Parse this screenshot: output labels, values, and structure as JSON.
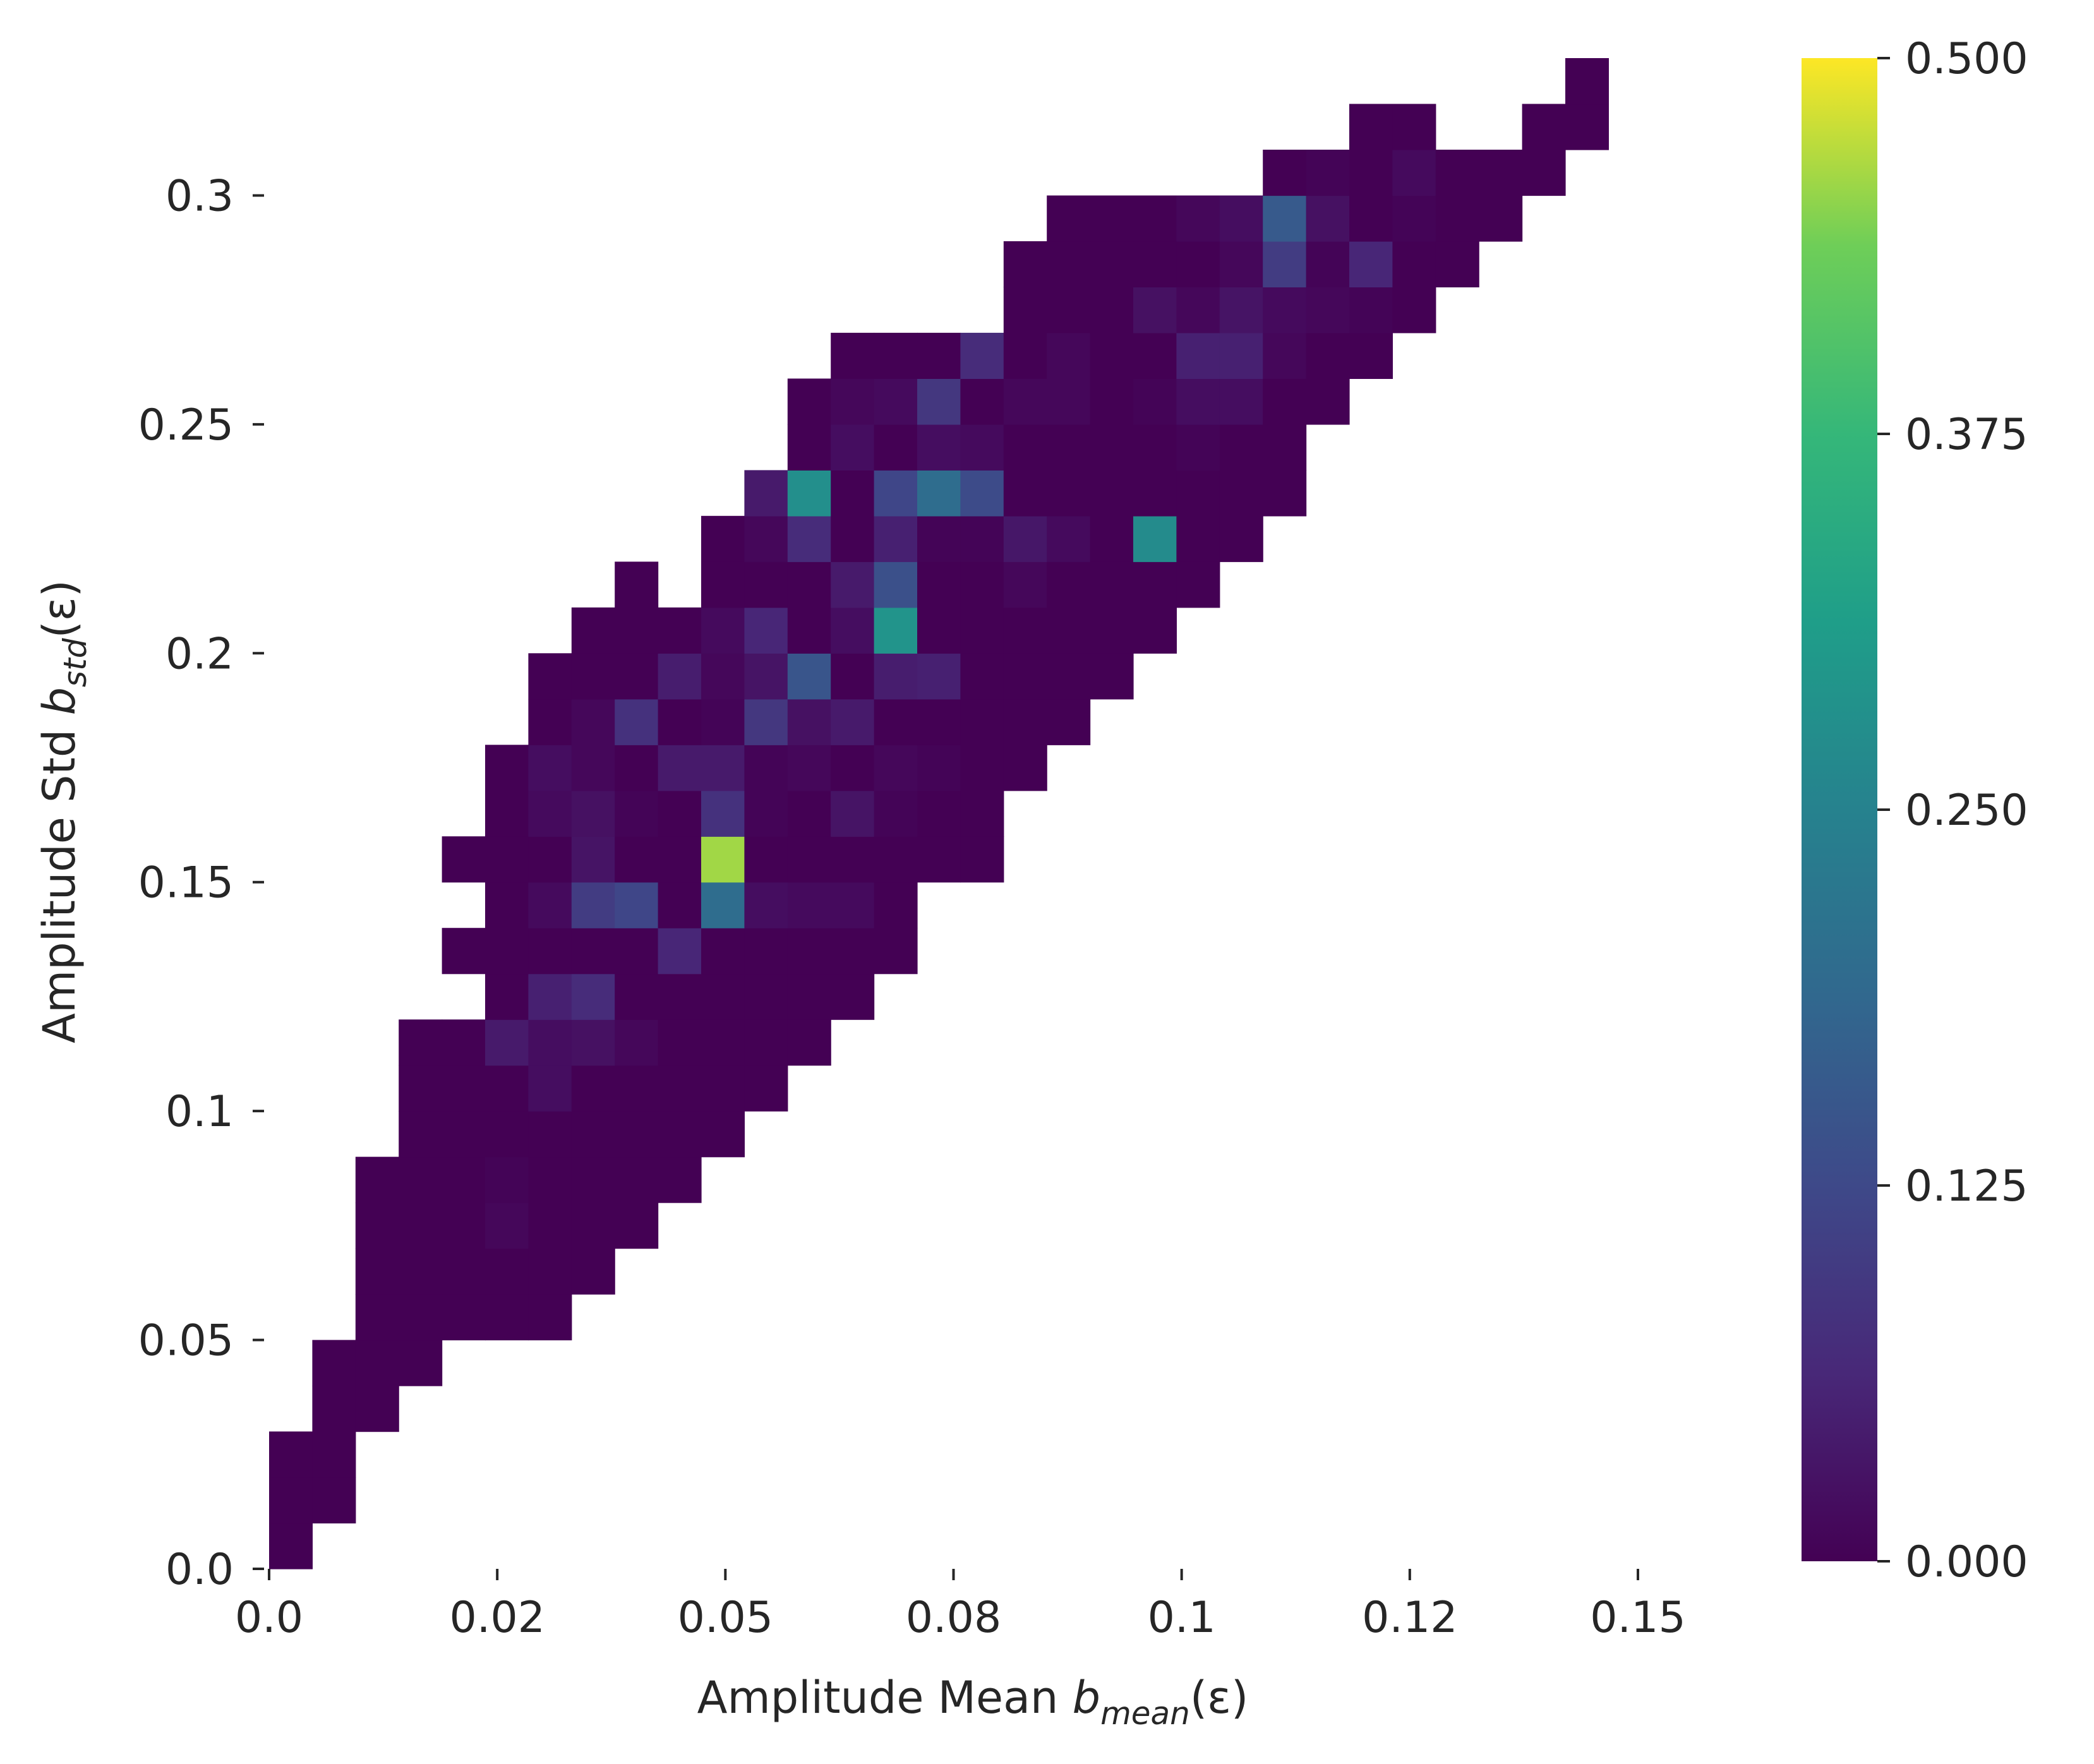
{
  "chart_data": {
    "type": "heatmap",
    "title": "",
    "xlabel": {
      "prefix": "Amplitude Mean ",
      "symbol": "b",
      "subscript": "mean",
      "suffix": "(ε)"
    },
    "ylabel": {
      "prefix": "Amplitude Std ",
      "symbol": "b",
      "subscript": "std",
      "suffix": "(ε)"
    },
    "x_ticks": [
      {
        "value": 0.0,
        "label": "0.0"
      },
      {
        "value": 0.025,
        "label": "0.02"
      },
      {
        "value": 0.05,
        "label": "0.05"
      },
      {
        "value": 0.075,
        "label": "0.08"
      },
      {
        "value": 0.1,
        "label": "0.1"
      },
      {
        "value": 0.125,
        "label": "0.12"
      },
      {
        "value": 0.15,
        "label": "0.15"
      }
    ],
    "y_ticks": [
      {
        "value": 0.0,
        "label": "0.0"
      },
      {
        "value": 0.05,
        "label": "0.05"
      },
      {
        "value": 0.1,
        "label": "0.1"
      },
      {
        "value": 0.15,
        "label": "0.15"
      },
      {
        "value": 0.2,
        "label": "0.2"
      },
      {
        "value": 0.25,
        "label": "0.25"
      },
      {
        "value": 0.3,
        "label": "0.3"
      }
    ],
    "xlim": [
      0.0,
      0.15
    ],
    "ylim": [
      0.0,
      0.33
    ],
    "n_x_bins": 31,
    "n_y_bins": 33,
    "colorbar": {
      "range": [
        0.0,
        0.5
      ],
      "colormap": "viridis",
      "ticks": [
        {
          "value": 0.0,
          "label": "0.000"
        },
        {
          "value": 0.125,
          "label": "0.125"
        },
        {
          "value": 0.25,
          "label": "0.250"
        },
        {
          "value": 0.375,
          "label": "0.375"
        },
        {
          "value": 0.5,
          "label": "0.500"
        }
      ]
    },
    "grid": false,
    "legend": "none",
    "cells": [
      [
        0,
        0,
        0.0
      ],
      [
        0,
        1,
        0.0
      ],
      [
        1,
        1,
        0.0
      ],
      [
        0,
        2,
        0.0
      ],
      [
        1,
        2,
        0.0
      ],
      [
        1,
        3,
        0.0
      ],
      [
        2,
        3,
        0.0
      ],
      [
        1,
        4,
        0.0
      ],
      [
        2,
        4,
        0.0
      ],
      [
        3,
        4,
        0.0
      ],
      [
        2,
        5,
        0.0
      ],
      [
        3,
        5,
        0.0
      ],
      [
        4,
        5,
        0.0
      ],
      [
        5,
        5,
        0.0
      ],
      [
        6,
        5,
        0.0
      ],
      [
        2,
        6,
        0.0
      ],
      [
        3,
        6,
        0.0
      ],
      [
        4,
        6,
        0.0
      ],
      [
        5,
        6,
        0.0
      ],
      [
        6,
        6,
        0.0
      ],
      [
        7,
        6,
        0.0
      ],
      [
        2,
        7,
        0.0
      ],
      [
        3,
        7,
        0.0
      ],
      [
        4,
        7,
        0.0
      ],
      [
        5,
        7,
        0.01
      ],
      [
        6,
        7,
        0.0
      ],
      [
        7,
        7,
        0.0
      ],
      [
        8,
        7,
        0.0
      ],
      [
        2,
        8,
        0.0
      ],
      [
        3,
        8,
        0.0
      ],
      [
        4,
        8,
        0.0
      ],
      [
        5,
        8,
        0.005
      ],
      [
        6,
        8,
        0.0
      ],
      [
        7,
        8,
        0.0
      ],
      [
        8,
        8,
        0.0
      ],
      [
        9,
        8,
        0.0
      ],
      [
        3,
        9,
        0.0
      ],
      [
        4,
        9,
        0.0
      ],
      [
        5,
        9,
        0.0
      ],
      [
        6,
        9,
        0.0
      ],
      [
        7,
        9,
        0.0
      ],
      [
        8,
        9,
        0.0
      ],
      [
        9,
        9,
        0.0
      ],
      [
        10,
        9,
        0.0
      ],
      [
        3,
        10,
        0.0
      ],
      [
        4,
        10,
        0.0
      ],
      [
        5,
        10,
        0.0
      ],
      [
        6,
        10,
        0.02
      ],
      [
        7,
        10,
        0.0
      ],
      [
        8,
        10,
        0.0
      ],
      [
        9,
        10,
        0.0
      ],
      [
        10,
        10,
        0.0
      ],
      [
        11,
        10,
        0.0
      ],
      [
        3,
        11,
        0.0
      ],
      [
        4,
        11,
        0.0
      ],
      [
        5,
        11,
        0.04
      ],
      [
        6,
        11,
        0.02
      ],
      [
        7,
        11,
        0.025
      ],
      [
        8,
        11,
        0.01
      ],
      [
        9,
        11,
        0.0
      ],
      [
        10,
        11,
        0.0
      ],
      [
        11,
        11,
        0.0
      ],
      [
        12,
        11,
        0.0
      ],
      [
        5,
        12,
        0.0
      ],
      [
        6,
        12,
        0.05
      ],
      [
        7,
        12,
        0.07
      ],
      [
        8,
        12,
        0.0
      ],
      [
        9,
        12,
        0.0
      ],
      [
        10,
        12,
        0.0
      ],
      [
        11,
        12,
        0.0
      ],
      [
        12,
        12,
        0.0
      ],
      [
        13,
        12,
        0.0
      ],
      [
        4,
        13,
        0.0
      ],
      [
        5,
        13,
        0.0
      ],
      [
        6,
        13,
        0.0
      ],
      [
        7,
        13,
        0.0
      ],
      [
        8,
        13,
        0.0
      ],
      [
        9,
        13,
        0.06
      ],
      [
        10,
        13,
        0.0
      ],
      [
        11,
        13,
        0.0
      ],
      [
        12,
        13,
        0.0
      ],
      [
        13,
        13,
        0.0
      ],
      [
        14,
        13,
        0.0
      ],
      [
        5,
        14,
        0.0
      ],
      [
        6,
        14,
        0.015
      ],
      [
        7,
        14,
        0.1
      ],
      [
        8,
        14,
        0.12
      ],
      [
        9,
        14,
        0.0
      ],
      [
        10,
        14,
        0.2
      ],
      [
        11,
        14,
        0.02
      ],
      [
        12,
        14,
        0.015
      ],
      [
        13,
        14,
        0.015
      ],
      [
        14,
        14,
        0.0
      ],
      [
        4,
        15,
        0.0
      ],
      [
        5,
        15,
        0.0
      ],
      [
        6,
        15,
        0.0
      ],
      [
        7,
        15,
        0.03
      ],
      [
        8,
        15,
        0.0
      ],
      [
        9,
        15,
        0.0
      ],
      [
        10,
        15,
        0.46
      ],
      [
        11,
        15,
        0.0
      ],
      [
        12,
        15,
        0.0
      ],
      [
        13,
        15,
        0.0
      ],
      [
        14,
        15,
        0.0
      ],
      [
        15,
        15,
        0.0
      ],
      [
        16,
        15,
        0.0
      ],
      [
        5,
        16,
        0.0
      ],
      [
        6,
        16,
        0.015
      ],
      [
        7,
        16,
        0.025
      ],
      [
        8,
        16,
        0.005
      ],
      [
        9,
        16,
        0.0
      ],
      [
        10,
        16,
        0.08
      ],
      [
        11,
        16,
        0.005
      ],
      [
        12,
        16,
        0.0
      ],
      [
        13,
        16,
        0.03
      ],
      [
        14,
        16,
        0.005
      ],
      [
        15,
        16,
        0.0
      ],
      [
        16,
        16,
        0.0
      ],
      [
        5,
        17,
        0.0
      ],
      [
        6,
        17,
        0.02
      ],
      [
        7,
        17,
        0.01
      ],
      [
        8,
        17,
        0.0
      ],
      [
        9,
        17,
        0.04
      ],
      [
        10,
        17,
        0.04
      ],
      [
        11,
        17,
        0.005
      ],
      [
        12,
        17,
        0.01
      ],
      [
        13,
        17,
        0.0
      ],
      [
        14,
        17,
        0.01
      ],
      [
        15,
        17,
        0.005
      ],
      [
        16,
        17,
        0.0
      ],
      [
        17,
        17,
        0.0
      ],
      [
        6,
        18,
        0.0
      ],
      [
        7,
        18,
        0.01
      ],
      [
        8,
        18,
        0.08
      ],
      [
        9,
        18,
        0.0
      ],
      [
        10,
        18,
        0.005
      ],
      [
        11,
        18,
        0.09
      ],
      [
        12,
        18,
        0.025
      ],
      [
        13,
        18,
        0.04
      ],
      [
        14,
        18,
        0.0
      ],
      [
        15,
        18,
        0.0
      ],
      [
        16,
        18,
        0.0
      ],
      [
        17,
        18,
        0.0
      ],
      [
        18,
        18,
        0.0
      ],
      [
        6,
        19,
        0.0
      ],
      [
        7,
        19,
        0.0
      ],
      [
        8,
        19,
        0.0
      ],
      [
        9,
        19,
        0.045
      ],
      [
        10,
        19,
        0.01
      ],
      [
        11,
        19,
        0.03
      ],
      [
        12,
        19,
        0.15
      ],
      [
        13,
        19,
        0.0
      ],
      [
        14,
        19,
        0.045
      ],
      [
        15,
        19,
        0.05
      ],
      [
        16,
        19,
        0.0
      ],
      [
        17,
        19,
        0.0
      ],
      [
        18,
        19,
        0.0
      ],
      [
        19,
        19,
        0.0
      ],
      [
        7,
        20,
        0.0
      ],
      [
        8,
        20,
        0.0
      ],
      [
        9,
        20,
        0.0
      ],
      [
        10,
        20,
        0.015
      ],
      [
        11,
        20,
        0.06
      ],
      [
        12,
        20,
        0.0
      ],
      [
        13,
        20,
        0.02
      ],
      [
        14,
        20,
        0.29
      ],
      [
        15,
        20,
        0.0
      ],
      [
        16,
        20,
        0.0
      ],
      [
        17,
        20,
        0.0
      ],
      [
        18,
        20,
        0.0
      ],
      [
        19,
        20,
        0.0
      ],
      [
        20,
        20,
        0.0
      ],
      [
        8,
        21,
        0.0
      ],
      [
        10,
        21,
        0.0
      ],
      [
        11,
        21,
        0.0
      ],
      [
        12,
        21,
        0.0
      ],
      [
        13,
        21,
        0.04
      ],
      [
        14,
        21,
        0.14
      ],
      [
        15,
        21,
        0.0
      ],
      [
        16,
        21,
        0.0
      ],
      [
        17,
        21,
        0.01
      ],
      [
        18,
        21,
        0.0
      ],
      [
        19,
        21,
        0.0
      ],
      [
        20,
        21,
        0.0
      ],
      [
        21,
        21,
        0.0
      ],
      [
        10,
        22,
        0.0
      ],
      [
        11,
        22,
        0.01
      ],
      [
        12,
        22,
        0.07
      ],
      [
        13,
        22,
        0.0
      ],
      [
        14,
        22,
        0.05
      ],
      [
        15,
        22,
        0.005
      ],
      [
        16,
        22,
        0.005
      ],
      [
        17,
        22,
        0.035
      ],
      [
        18,
        22,
        0.015
      ],
      [
        19,
        22,
        0.0
      ],
      [
        20,
        22,
        0.27
      ],
      [
        21,
        22,
        0.0
      ],
      [
        22,
        22,
        0.0
      ],
      [
        11,
        23,
        0.04
      ],
      [
        12,
        23,
        0.28
      ],
      [
        13,
        23,
        0.0
      ],
      [
        14,
        23,
        0.12
      ],
      [
        15,
        23,
        0.2
      ],
      [
        16,
        23,
        0.13
      ],
      [
        17,
        23,
        0.0
      ],
      [
        18,
        23,
        0.0
      ],
      [
        19,
        23,
        0.0
      ],
      [
        20,
        23,
        0.0
      ],
      [
        21,
        23,
        0.0
      ],
      [
        22,
        23,
        0.0
      ],
      [
        23,
        23,
        0.0
      ],
      [
        12,
        24,
        0.0
      ],
      [
        13,
        24,
        0.02
      ],
      [
        14,
        24,
        0.0
      ],
      [
        15,
        24,
        0.02
      ],
      [
        16,
        24,
        0.015
      ],
      [
        17,
        24,
        0.0
      ],
      [
        18,
        24,
        0.0
      ],
      [
        19,
        24,
        0.0
      ],
      [
        20,
        24,
        0.0
      ],
      [
        21,
        24,
        0.005
      ],
      [
        22,
        24,
        0.0
      ],
      [
        23,
        24,
        0.0
      ],
      [
        12,
        25,
        0.0
      ],
      [
        13,
        25,
        0.01
      ],
      [
        14,
        25,
        0.015
      ],
      [
        15,
        25,
        0.09
      ],
      [
        16,
        25,
        0.0
      ],
      [
        17,
        25,
        0.01
      ],
      [
        18,
        25,
        0.01
      ],
      [
        19,
        25,
        0.0
      ],
      [
        20,
        25,
        0.005
      ],
      [
        21,
        25,
        0.02
      ],
      [
        22,
        25,
        0.02
      ],
      [
        23,
        25,
        0.0
      ],
      [
        24,
        25,
        0.0
      ],
      [
        13,
        26,
        0.0
      ],
      [
        14,
        26,
        0.0
      ],
      [
        15,
        26,
        0.0
      ],
      [
        16,
        26,
        0.07
      ],
      [
        17,
        26,
        0.0
      ],
      [
        18,
        26,
        0.01
      ],
      [
        19,
        26,
        0.0
      ],
      [
        20,
        26,
        0.0
      ],
      [
        21,
        26,
        0.05
      ],
      [
        22,
        26,
        0.05
      ],
      [
        23,
        26,
        0.01
      ],
      [
        24,
        26,
        0.0
      ],
      [
        25,
        26,
        0.0
      ],
      [
        17,
        27,
        0.0
      ],
      [
        18,
        27,
        0.0
      ],
      [
        19,
        27,
        0.0
      ],
      [
        20,
        27,
        0.025
      ],
      [
        21,
        27,
        0.01
      ],
      [
        22,
        27,
        0.03
      ],
      [
        23,
        27,
        0.015
      ],
      [
        24,
        27,
        0.01
      ],
      [
        25,
        27,
        0.005
      ],
      [
        26,
        27,
        0.0
      ],
      [
        17,
        28,
        0.0
      ],
      [
        18,
        28,
        0.0
      ],
      [
        19,
        28,
        0.0
      ],
      [
        20,
        28,
        0.0
      ],
      [
        21,
        28,
        0.0
      ],
      [
        22,
        28,
        0.01
      ],
      [
        23,
        28,
        0.1
      ],
      [
        24,
        28,
        0.005
      ],
      [
        25,
        28,
        0.06
      ],
      [
        26,
        28,
        0.0
      ],
      [
        27,
        28,
        0.0
      ],
      [
        18,
        29,
        0.0
      ],
      [
        19,
        29,
        0.0
      ],
      [
        20,
        29,
        0.0
      ],
      [
        21,
        29,
        0.01
      ],
      [
        22,
        29,
        0.02
      ],
      [
        23,
        29,
        0.16
      ],
      [
        24,
        29,
        0.025
      ],
      [
        25,
        29,
        0.0
      ],
      [
        26,
        29,
        0.005
      ],
      [
        27,
        29,
        0.0
      ],
      [
        28,
        29,
        0.0
      ],
      [
        23,
        30,
        0.0
      ],
      [
        24,
        30,
        0.005
      ],
      [
        25,
        30,
        0.0
      ],
      [
        26,
        30,
        0.015
      ],
      [
        27,
        30,
        0.0
      ],
      [
        28,
        30,
        0.0
      ],
      [
        29,
        30,
        0.0
      ],
      [
        25,
        31,
        0.0
      ],
      [
        26,
        31,
        0.0
      ],
      [
        29,
        31,
        0.0
      ],
      [
        30,
        31,
        0.0
      ],
      [
        30,
        32,
        0.0
      ]
    ]
  }
}
